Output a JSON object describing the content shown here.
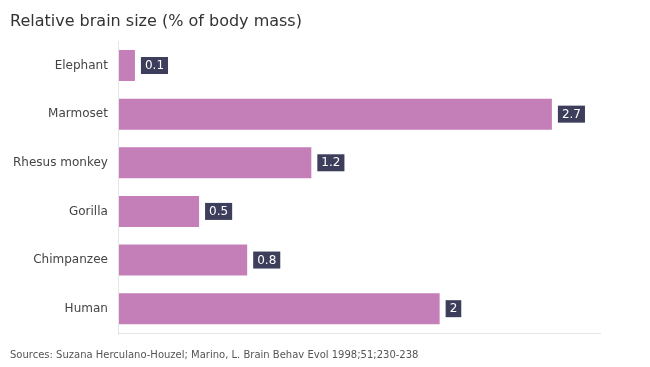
{
  "chart_data": {
    "type": "bar",
    "orientation": "horizontal",
    "title": "Relative brain size (% of body mass)",
    "categories": [
      "Elephant",
      "Marmoset",
      "Rhesus monkey",
      "Gorilla",
      "Chimpanzee",
      "Human"
    ],
    "values": [
      0.1,
      2.7,
      1.2,
      0.5,
      0.8,
      2.0
    ],
    "color": "#c47fb8",
    "xlim": [
      0,
      3.0
    ],
    "data_labels": true,
    "tick_labels": "y",
    "grid": false,
    "annotations": [
      "Sources: Suzana Herculano-Houzel; Marino, L. Brain Behav Evol 1998;51;230-238"
    ]
  }
}
